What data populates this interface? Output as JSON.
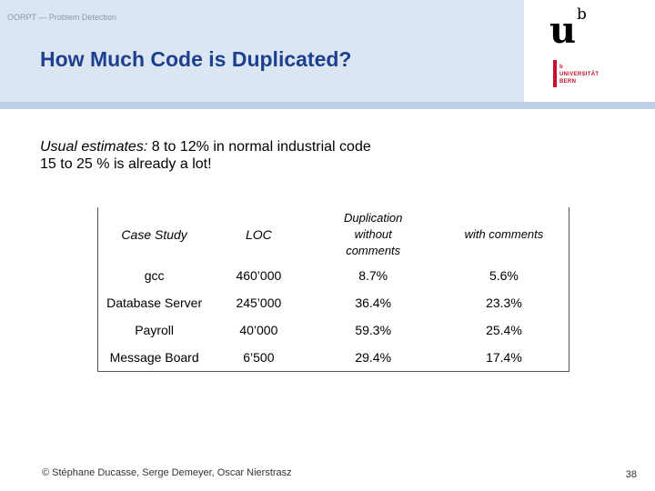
{
  "header": {
    "breadcrumb": "OORPT — Problem Detection",
    "title": "How Much Code is Duplicated?"
  },
  "logo": {
    "letter_u": "u",
    "superscript_b": "b",
    "lines": [
      "b",
      "UNIVERSITÄT",
      "BERN"
    ]
  },
  "intro": {
    "label": "Usual estimates:",
    "line1_rest": " 8 to 12% in normal industrial code",
    "line2": "15 to 25 % is already a lot!"
  },
  "table": {
    "headers": [
      "Case Study",
      "LOC",
      "Duplication without comments",
      "with comments"
    ],
    "rows": [
      [
        "gcc",
        "460’000",
        "8.7%",
        "5.6%"
      ],
      [
        "Database Server",
        "245’000",
        "36.4%",
        "23.3%"
      ],
      [
        "Payroll",
        "40’000",
        "59.3%",
        "25.4%"
      ],
      [
        "Message Board",
        "6’500",
        "29.4%",
        "17.4%"
      ]
    ]
  },
  "footer": {
    "credits": "© Stéphane Ducasse, Serge Demeyer, Oscar Nierstrasz",
    "page_number": "38"
  },
  "colors": {
    "header_band": "#dce6f2",
    "title": "#1d3f8f",
    "logo_red": "#c8102e"
  }
}
